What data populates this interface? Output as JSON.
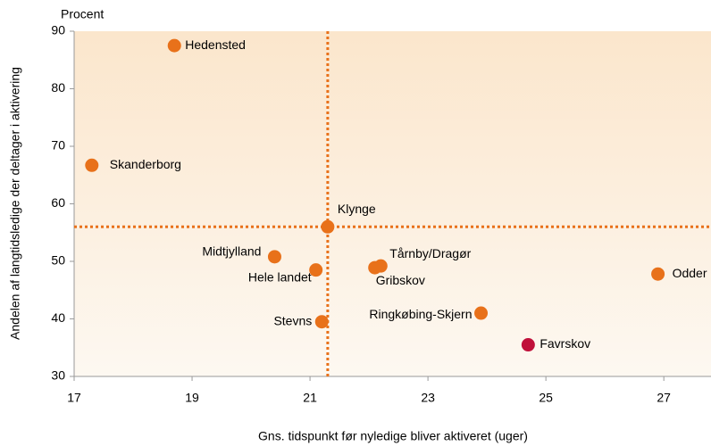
{
  "chart_data": {
    "type": "scatter",
    "y_unit_label": "Procent",
    "xlabel": "Gns. tidspunkt før nyledige bliver aktiveret (uger)",
    "ylabel": "Andelen af langtidsledige der deltager i aktivering",
    "labels": [
      "Hedensted",
      "Skanderborg",
      "Klynge",
      "Midtjylland",
      "Hele landet",
      "Tårnby/Dragør",
      "Gribskov",
      "Odder",
      "Ringkøbing-Skjern",
      "Stevns",
      "Favrskov"
    ],
    "x": [
      18.7,
      17.3,
      21.3,
      20.4,
      21.1,
      22.2,
      22.1,
      26.9,
      23.9,
      21.2,
      24.7
    ],
    "values": [
      87.5,
      66.7,
      56,
      50.8,
      48.5,
      49.2,
      48.9,
      47.8,
      41,
      39.5,
      35.5
    ],
    "colors": [
      "#e8711a",
      "#e8711a",
      "#e8711a",
      "#e8711a",
      "#e8711a",
      "#e8711a",
      "#e8711a",
      "#e8711a",
      "#e8711a",
      "#e8711a",
      "#c0103a"
    ],
    "reference_lines": {
      "x": 21.3,
      "y": 56,
      "color": "#e8711a"
    },
    "xlim": [
      17,
      27.8
    ],
    "ylim": [
      30,
      90
    ],
    "xticks": [
      17,
      19,
      21,
      23,
      25,
      27
    ],
    "yticks": [
      30,
      40,
      50,
      60,
      70,
      80,
      90
    ],
    "grid": false
  }
}
